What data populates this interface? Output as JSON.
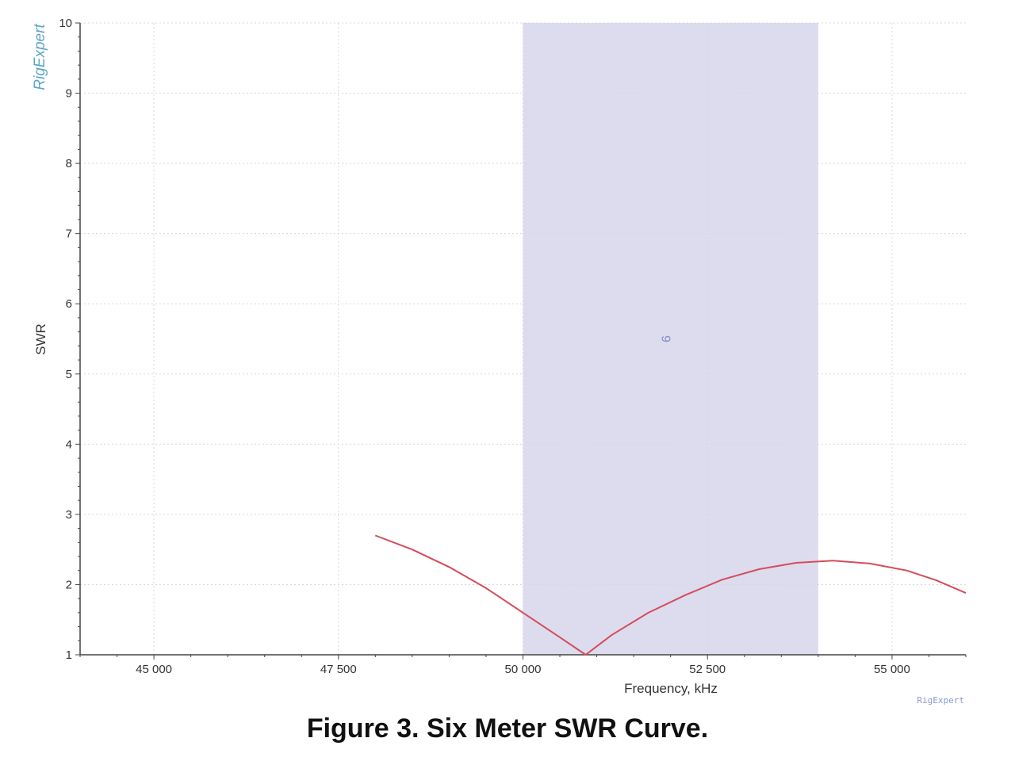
{
  "caption": "Figure 3.  Six Meter SWR Curve.",
  "chart_data": {
    "type": "line",
    "title": "",
    "xlabel": "Frequency, kHz",
    "ylabel": "SWR",
    "xlim": [
      44000,
      56000
    ],
    "ylim": [
      1,
      10
    ],
    "xticks": [
      {
        "value": 45000,
        "label": "45 000"
      },
      {
        "value": 47500,
        "label": "47 500"
      },
      {
        "value": 50000,
        "label": "50 000"
      },
      {
        "value": 52500,
        "label": "52 500"
      },
      {
        "value": 55000,
        "label": "55 000"
      }
    ],
    "yticks": [
      {
        "value": 1,
        "label": "1"
      },
      {
        "value": 2,
        "label": "2"
      },
      {
        "value": 3,
        "label": "3"
      },
      {
        "value": 4,
        "label": "4"
      },
      {
        "value": 5,
        "label": "5"
      },
      {
        "value": 6,
        "label": "6"
      },
      {
        "value": 7,
        "label": "7"
      },
      {
        "value": 8,
        "label": "8"
      },
      {
        "value": 9,
        "label": "9"
      },
      {
        "value": 10,
        "label": "10"
      }
    ],
    "grid": true,
    "band": {
      "x_start": 50000,
      "x_end": 54000,
      "label": "6",
      "color": "#dcdcee"
    },
    "series": [
      {
        "color": "#d44c5a",
        "x": [
          48000,
          48500,
          49000,
          49500,
          50000,
          50500,
          50850,
          51200,
          51700,
          52200,
          52700,
          53200,
          53700,
          54200,
          54700,
          55200,
          55600,
          56000
        ],
        "y": [
          2.7,
          2.5,
          2.25,
          1.95,
          1.6,
          1.25,
          1.0,
          1.28,
          1.6,
          1.85,
          2.07,
          2.22,
          2.31,
          2.34,
          2.3,
          2.2,
          2.06,
          1.88
        ]
      }
    ],
    "watermark": "RigExpert",
    "footer_brand": "RigExpert"
  }
}
